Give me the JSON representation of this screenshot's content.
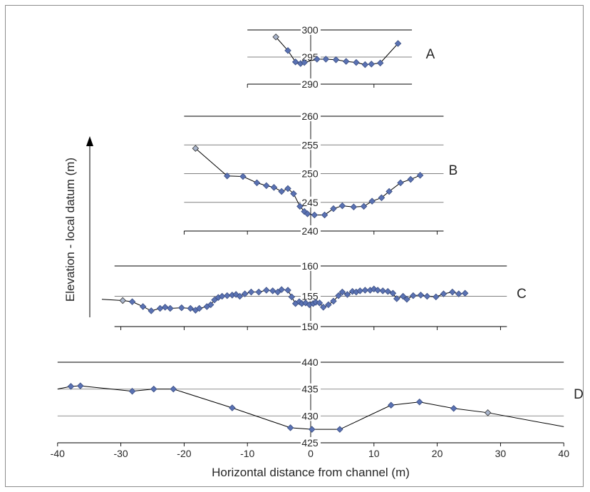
{
  "colors": {
    "marker": "#5a72b3",
    "marker_stroke": "#3a4d80",
    "endpoint_marker": "#a9b5cc",
    "line": "#000000",
    "gridline": "#808080"
  },
  "xlabel": "Horizontal distance from channel (m)",
  "ylabel": "Elevation - local datum (m)",
  "chart_data": [
    {
      "type": "line",
      "panel_label": "A",
      "ylim": [
        290,
        300
      ],
      "yticks": [
        290,
        295,
        300
      ],
      "xlim": [
        -10,
        16
      ],
      "series": [
        {
          "x": [
            -5.5,
            -3.6,
            -2.4,
            -1.6,
            -1.0,
            1.0,
            2.4,
            4.0,
            5.6,
            7.2,
            8.6,
            9.6,
            11.0,
            13.8
          ],
          "y": [
            298.7,
            296.2,
            294.1,
            293.8,
            294.0,
            294.6,
            294.6,
            294.5,
            294.2,
            294.0,
            293.6,
            293.7,
            293.9,
            297.5
          ]
        }
      ]
    },
    {
      "type": "line",
      "panel_label": "B",
      "ylim": [
        240,
        260
      ],
      "yticks": [
        240,
        245,
        250,
        255,
        260
      ],
      "xlim": [
        -20,
        21
      ],
      "series": [
        {
          "x": [
            -18.2,
            -13.2,
            -10.7,
            -8.5,
            -7.0,
            -5.8,
            -4.6,
            -3.6,
            -2.7,
            -1.7,
            -1.0,
            -0.5,
            0.6,
            2.2,
            3.6,
            5.0,
            6.8,
            8.4,
            9.7,
            11.2,
            12.4,
            14.2,
            15.8,
            17.3
          ],
          "y": [
            254.4,
            249.6,
            249.5,
            248.4,
            247.9,
            247.6,
            246.9,
            247.4,
            246.5,
            244.3,
            243.4,
            243.0,
            242.8,
            242.8,
            243.9,
            244.4,
            244.2,
            244.3,
            245.2,
            245.8,
            246.9,
            248.4,
            249.0,
            249.7
          ]
        }
      ]
    },
    {
      "type": "line",
      "panel_label": "C",
      "ylim": [
        150,
        160
      ],
      "yticks": [
        150,
        155,
        160
      ],
      "xlim": [
        -31,
        31
      ],
      "series": [
        {
          "x": [
            -33,
            -29.7,
            -28.2,
            -26.5,
            -25.2,
            -23.8,
            -23.0,
            -22.2,
            -20.4,
            -19.0,
            -18.2,
            -17.6,
            -16.4,
            -15.8,
            -15.2,
            -14.6,
            -14.0,
            -13.2,
            -12.4,
            -11.8,
            -11.2,
            -10.4,
            -9.4,
            -8.2,
            -7.0,
            -6.0,
            -5.2,
            -4.6,
            -3.6,
            -3.0,
            -2.4,
            -1.8,
            -1.4,
            -0.8,
            -0.2,
            0.4,
            0.8,
            1.4,
            2.0,
            2.8,
            3.6,
            4.4,
            5.0,
            5.8,
            6.6,
            7.2,
            7.8,
            8.6,
            9.4,
            10.0,
            10.6,
            11.4,
            12.2,
            13.0,
            13.6,
            14.6,
            15.2,
            16.2,
            17.4,
            18.4,
            19.8,
            21.0,
            22.4,
            23.4,
            24.4
          ],
          "y": [
            154.5,
            154.3,
            154.1,
            153.3,
            152.6,
            153.0,
            153.2,
            153.0,
            153.1,
            153.0,
            152.7,
            153.0,
            153.3,
            153.6,
            154.4,
            154.8,
            155.0,
            155.1,
            155.2,
            155.3,
            155.0,
            155.4,
            155.7,
            155.7,
            156.0,
            155.9,
            155.7,
            156.1,
            156.0,
            154.9,
            153.8,
            154.1,
            153.8,
            153.9,
            153.6,
            153.8,
            154.0,
            153.9,
            153.2,
            153.6,
            154.2,
            155.1,
            155.7,
            155.3,
            155.8,
            155.7,
            155.9,
            156.0,
            156.0,
            156.2,
            156.0,
            155.9,
            155.8,
            155.5,
            154.6,
            155.0,
            154.5,
            155.1,
            155.2,
            155.0,
            154.9,
            155.4,
            155.7,
            155.4,
            155.5
          ]
        }
      ]
    },
    {
      "type": "line",
      "panel_label": "D",
      "ylim": [
        425,
        440
      ],
      "yticks": [
        425,
        430,
        435,
        440
      ],
      "xlim": [
        -40,
        40
      ],
      "xticks": [
        -40,
        -30,
        -20,
        -10,
        0,
        10,
        20,
        30,
        40
      ],
      "series": [
        {
          "x": [
            -40.0,
            -37.9,
            -36.4,
            -28.2,
            -24.8,
            -21.7,
            -12.4,
            -3.2,
            0.2,
            4.6,
            12.7,
            17.2,
            22.6,
            28.0,
            40.0
          ],
          "y": [
            435.0,
            435.5,
            435.6,
            434.6,
            435.0,
            435.0,
            431.5,
            427.8,
            427.5,
            427.5,
            432.0,
            432.6,
            431.4,
            430.6,
            428.0
          ]
        }
      ]
    }
  ]
}
